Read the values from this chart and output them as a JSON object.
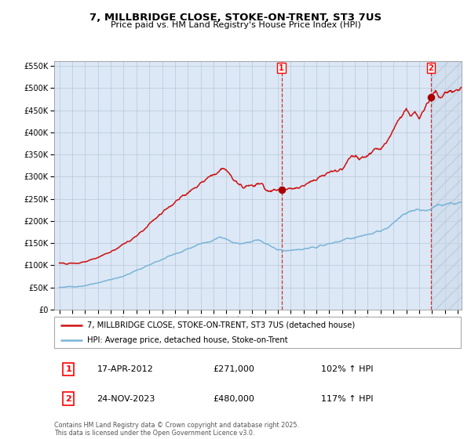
{
  "title": "7, MILLBRIDGE CLOSE, STOKE-ON-TRENT, ST3 7US",
  "subtitle": "Price paid vs. HM Land Registry's House Price Index (HPI)",
  "legend_line1": "7, MILLBRIDGE CLOSE, STOKE-ON-TRENT, ST3 7US (detached house)",
  "legend_line2": "HPI: Average price, detached house, Stoke-on-Trent",
  "annotation1_date": "17-APR-2012",
  "annotation1_price": "£271,000",
  "annotation1_hpi": "102% ↑ HPI",
  "annotation2_date": "24-NOV-2023",
  "annotation2_price": "£480,000",
  "annotation2_hpi": "117% ↑ HPI",
  "footer": "Contains HM Land Registry data © Crown copyright and database right 2025.\nThis data is licensed under the Open Government Licence v3.0.",
  "hpi_color": "#7ab4d8",
  "price_color": "#cc1111",
  "marker_color": "#aa0000",
  "vline_color": "#cc1111",
  "bg_color": "#dce8f5",
  "grid_color": "#b8c8d8",
  "ylim": [
    0,
    560000
  ],
  "yticks": [
    0,
    50000,
    100000,
    150000,
    200000,
    250000,
    300000,
    350000,
    400000,
    450000,
    500000,
    550000
  ],
  "x_start_year": 1995,
  "x_end_year": 2026,
  "sale1_year": 2012.29,
  "sale1_price": 271000,
  "sale2_year": 2023.9,
  "sale2_price": 480000,
  "hatch_color": "#c8d8e8",
  "hatch_alpha": 0.5
}
